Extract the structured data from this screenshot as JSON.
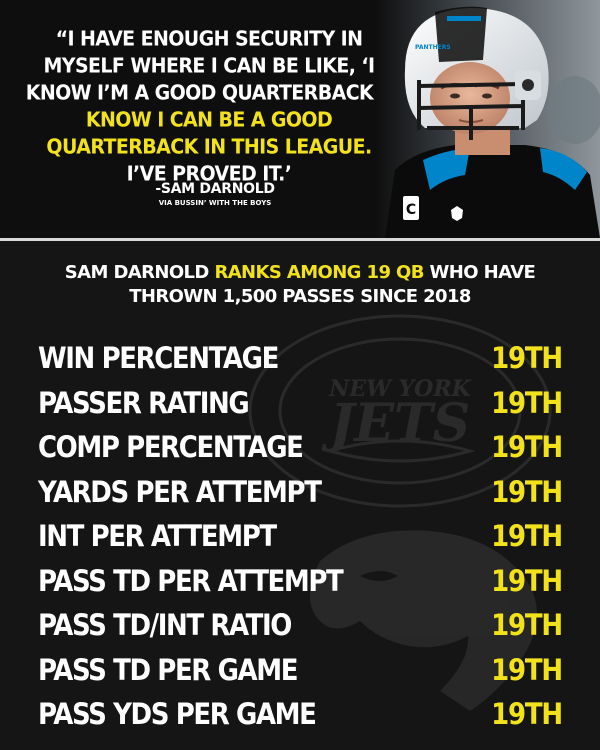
{
  "quote": {
    "line_white": "“I HAVE ENOUGH SECURITY IN MYSELF WHERE I CAN BE LIKE, ‘I KNOW I’M A GOOD QUARTERBACK.",
    "line_yellow": "I KNOW I CAN BE A GOOD QUARTERBACK IN THIS LEAGUE.",
    "line_end": "I’VE PROVED IT.’",
    "author": "-SAM DARNOLD",
    "source": "VIA BUSSIN’ WITH THE BOYS"
  },
  "photo": {
    "helmet_text": "PANTHERS",
    "jersey_letter": "C"
  },
  "headline": {
    "prefix": "SAM DARNOLD",
    "highlight": "RANKS AMONG 19 QB",
    "suffix": "WHO HAVE THROWN 1,500 PASSES SINCE 2018"
  },
  "watermark": {
    "jets_top": "NEW YORK",
    "jets_main": "JETS"
  },
  "stats": [
    {
      "label": "WIN PERCENTAGE",
      "rank": "19TH"
    },
    {
      "label": "PASSER RATING",
      "rank": "19TH"
    },
    {
      "label": "COMP PERCENTAGE",
      "rank": "19TH"
    },
    {
      "label": "YARDS PER ATTEMPT",
      "rank": "19TH"
    },
    {
      "label": "INT PER ATTEMPT",
      "rank": "19TH"
    },
    {
      "label": "PASS TD PER ATTEMPT",
      "rank": "19TH"
    },
    {
      "label": "PASS TD/INT RATIO",
      "rank": "19TH"
    },
    {
      "label": "PASS TD PER GAME",
      "rank": "19TH"
    },
    {
      "label": "PASS YDS PER GAME",
      "rank": "19TH"
    }
  ],
  "colors": {
    "accent_yellow": "#f2e21b",
    "panthers_blue": "#0085ca",
    "background": "#141414"
  }
}
